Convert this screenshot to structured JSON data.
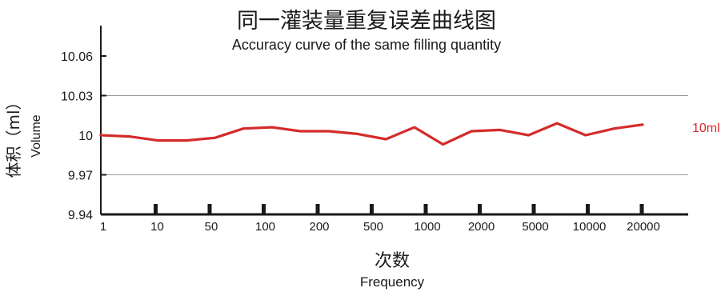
{
  "chart_data": {
    "type": "line",
    "title": "同一灌装量重复误差曲线图",
    "subtitle": "Accuracy curve of the same filling quantity",
    "xlabel": "次数",
    "xlabel_en": "Frequency",
    "ylabel": "体积（ml）",
    "ylabel_en": "Volume",
    "ylim": [
      9.94,
      10.06
    ],
    "yticks": [
      "10.06",
      "10.03",
      "10",
      "9.97",
      "9.94"
    ],
    "ytick_values": [
      10.06,
      10.03,
      10.0,
      9.97,
      9.94
    ],
    "gridlines_at": [
      10.03,
      9.97
    ],
    "grid": true,
    "xtick_labels": [
      "1",
      "10",
      "50",
      "100",
      "200",
      "500",
      "1000",
      "2000",
      "5000",
      "10000",
      "20000"
    ],
    "series_color": "#d42b2b",
    "series": [
      {
        "name": "10ml",
        "values": [
          10.0,
          9.999,
          9.996,
          9.996,
          9.998,
          10.005,
          10.006,
          10.003,
          10.003,
          10.001,
          9.997,
          10.006,
          9.993,
          10.003,
          10.004,
          10.0,
          10.009,
          10.0,
          10.005,
          10.008
        ]
      }
    ]
  }
}
